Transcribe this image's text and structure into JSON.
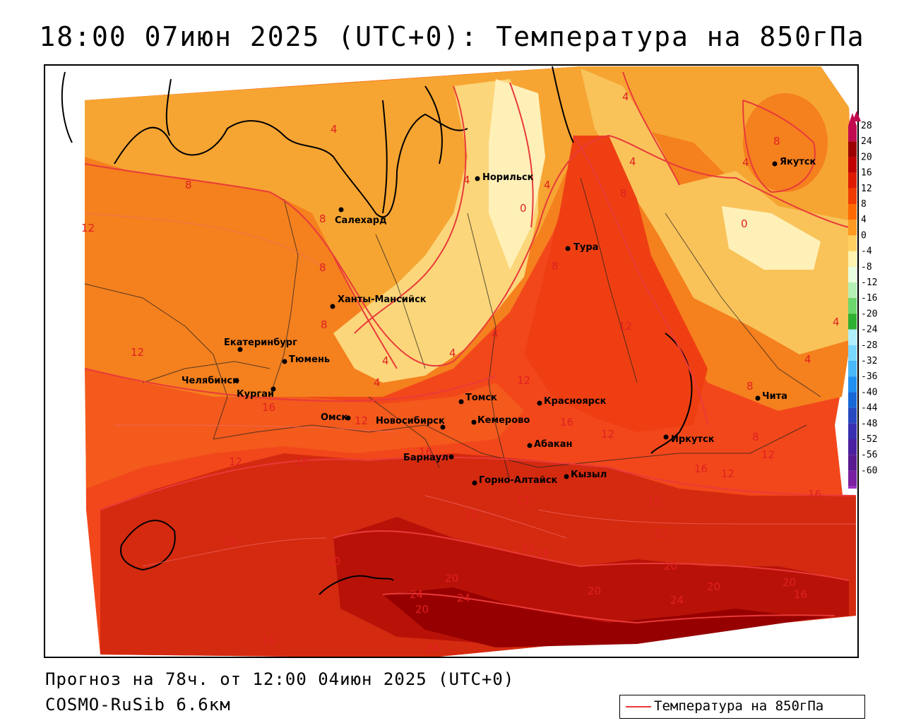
{
  "title": "18:00 07июн 2025 (UTC+0): Температура на 850гПа",
  "footer": {
    "forecast": "Прогноз на 78ч. от 12:00 04июн 2025 (UTC+0)",
    "model": "COSMO-RuSib 6.6км"
  },
  "legend": {
    "label": "Температура на 850гПа",
    "line_color": "#e83a3a"
  },
  "colorbar": {
    "ticks": [
      "28",
      "24",
      "20",
      "16",
      "12",
      "8",
      "4",
      "0",
      "-4",
      "-8",
      "-12",
      "-16",
      "-20",
      "-24",
      "-28",
      "-32",
      "-36",
      "-40",
      "-44",
      "-48",
      "-52",
      "-56",
      "-60"
    ],
    "colors": [
      "#c20a50",
      "#9c0000",
      "#c00000",
      "#e01a00",
      "#f03c00",
      "#ff6a00",
      "#ff9a20",
      "#ffd060",
      "#fff4b0",
      "#e8ffe0",
      "#b4f0b4",
      "#6cd86c",
      "#30b030",
      "#b0f0ff",
      "#7ad8ff",
      "#48b8f8",
      "#2090f0",
      "#1868d8",
      "#2848c0",
      "#3830b0",
      "#4a20a0",
      "#5a1a90",
      "#7a20a0",
      "#a030c0"
    ]
  },
  "cities": [
    {
      "name": "Норильск"
    },
    {
      "name": "Якутск"
    },
    {
      "name": "Салехард"
    },
    {
      "name": "Тура"
    },
    {
      "name": "Ханты-Мансийск"
    },
    {
      "name": "Екатеринбург"
    },
    {
      "name": "Тюмень"
    },
    {
      "name": "Челябинск"
    },
    {
      "name": "Курган"
    },
    {
      "name": "Омск"
    },
    {
      "name": "Новосибирск"
    },
    {
      "name": "Томск"
    },
    {
      "name": "Кемерово"
    },
    {
      "name": "Красноярск"
    },
    {
      "name": "Абакан"
    },
    {
      "name": "Барнаул"
    },
    {
      "name": "Горно-Алтайск"
    },
    {
      "name": "Кызыл"
    },
    {
      "name": "Иркутск"
    },
    {
      "name": "Чита"
    }
  ],
  "isoline_labels": [
    "4",
    "4",
    "4",
    "4",
    "4",
    "4",
    "4",
    "4",
    "4",
    "4",
    "4",
    "4",
    "8",
    "8",
    "8",
    "8",
    "8",
    "8",
    "8",
    "8",
    "8",
    "0",
    "0",
    "12",
    "12",
    "12",
    "12",
    "12",
    "12",
    "12",
    "12",
    "12",
    "12",
    "12",
    "12",
    "12",
    "16",
    "16",
    "16",
    "16",
    "16",
    "16",
    "16",
    "16",
    "16",
    "16",
    "16",
    "20",
    "20",
    "20",
    "20",
    "20",
    "20",
    "20",
    "24",
    "24",
    "24",
    "24"
  ]
}
